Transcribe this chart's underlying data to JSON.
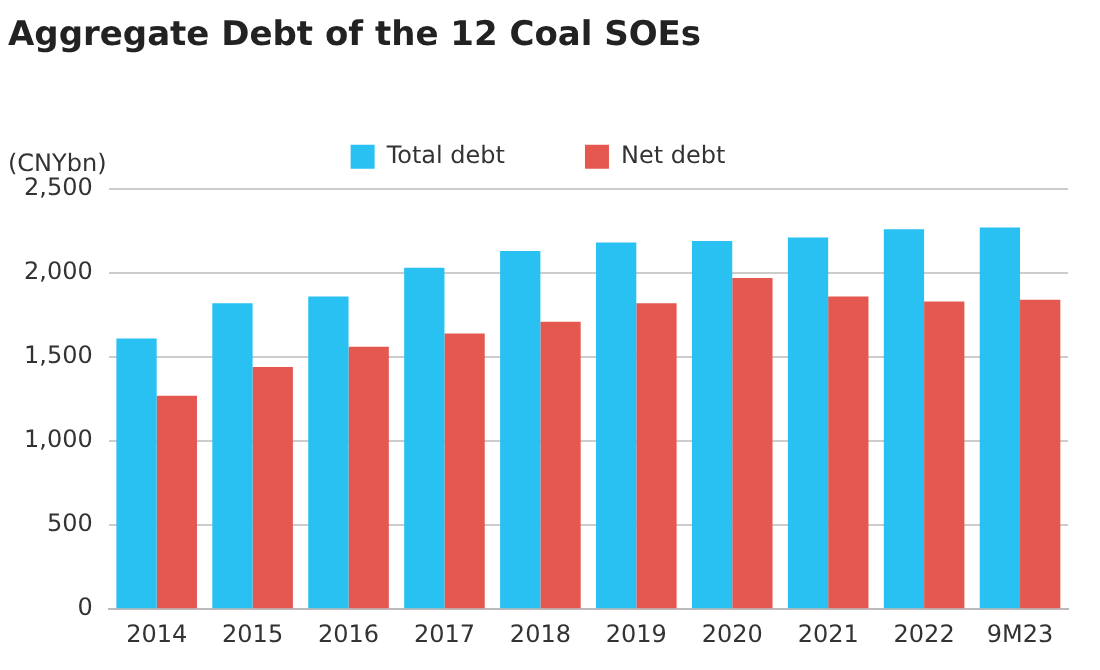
{
  "chart_data": {
    "type": "bar",
    "title": "Aggregate Debt of the 12 Coal SOEs",
    "ylabel": "(CNYbn)",
    "categories": [
      "2014",
      "2015",
      "2016",
      "2017",
      "2018",
      "2019",
      "2020",
      "2021",
      "2022",
      "9M23"
    ],
    "series": [
      {
        "name": "Total debt",
        "color": "#29c0f2",
        "values": [
          1610,
          1820,
          1860,
          2030,
          2130,
          2180,
          2190,
          2210,
          2260,
          2270
        ]
      },
      {
        "name": "Net debt",
        "color": "#e5584f",
        "values": [
          1270,
          1440,
          1560,
          1640,
          1710,
          1820,
          1970,
          1860,
          1830,
          1840
        ]
      }
    ],
    "ylim": [
      0,
      2500
    ],
    "yticks": [
      {
        "value": 0,
        "label": "0"
      },
      {
        "value": 500,
        "label": "500"
      },
      {
        "value": 1000,
        "label": "1,000"
      },
      {
        "value": 1500,
        "label": "1,500"
      },
      {
        "value": 2000,
        "label": "2,000"
      },
      {
        "value": 2500,
        "label": "2,500"
      }
    ],
    "grid": "y",
    "legend": "top"
  }
}
